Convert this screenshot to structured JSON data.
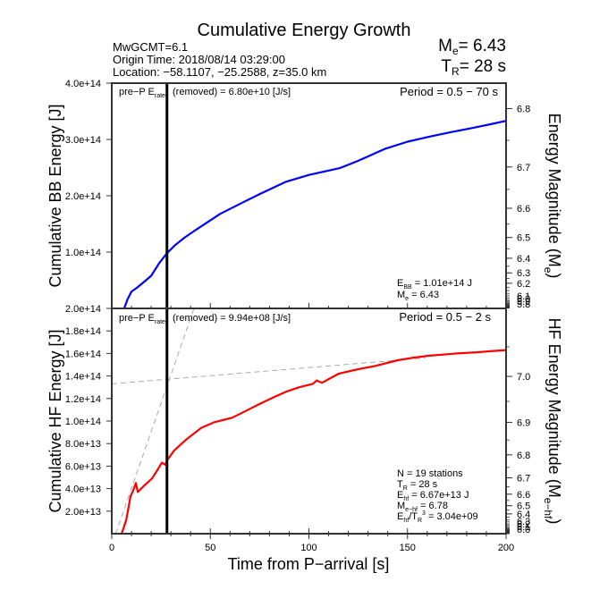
{
  "title": "Cumulative Energy Growth",
  "event": {
    "mw_line": "MwGCMT=6.1",
    "origin_time_line": "Origin Time: 2018/08/14 03:29:00",
    "location_line": "Location: −58.1107, −25.2588, z=35.0 km",
    "me_label": "M",
    "me_sub": "e",
    "me_value": "= 6.43",
    "tr_label": "T",
    "tr_sub": "R",
    "tr_value": "= 28 s"
  },
  "chart_data": [
    {
      "type": "line",
      "panel": "top",
      "title": "Cumulative BB Energy",
      "xlabel": "Time from P-arrival [s]",
      "ylabel": "Cumulative BB Energy [J]",
      "y2label_main": "Energy Magnitude (M",
      "y2label_sub": "e",
      "y2label_end": ")",
      "xlim": [
        0,
        200
      ],
      "ylim": [
        0,
        400000000000000.0
      ],
      "ytick_values": [
        100000000000000.0,
        200000000000000.0,
        300000000000000.0,
        400000000000000.0
      ],
      "ytick_labels": [
        "1.0e+14",
        "2.0e+14",
        "3.0e+14",
        "4.0e+14"
      ],
      "y2_magnitude_offset": 2.9,
      "y2_major_ticks": [
        6.8,
        6.7,
        6.6,
        6.5,
        6.4,
        6.3,
        6.2
      ],
      "y2_major_labels": [
        "6.8",
        "6.7",
        "6.6",
        "6.5",
        "6.4",
        "6.3",
        "6.2"
      ],
      "y2_crowded_labels": [
        "6.1",
        "6.0",
        "5.9",
        "5.8"
      ],
      "series": [
        {
          "name": "BB energy",
          "color": "#0000ff",
          "x": [
            6.3,
            8,
            10,
            12.7,
            16,
            20,
            24,
            28,
            32,
            37,
            42,
            47.6,
            55,
            65.8,
            75,
            88.4,
            100,
            115.6,
            125,
            138.3,
            150,
            161,
            172,
            183.7,
            192,
            200
          ],
          "y": [
            0,
            16000000000000.0,
            30000000000000.0,
            36500000000000.0,
            46000000000000.0,
            58000000000000.0,
            80000000000000.0,
            98000000000000.0,
            112000000000000.0,
            126000000000000.0,
            138000000000000.0,
            151000000000000.0,
            168000000000000.0,
            187000000000000.0,
            203000000000000.0,
            225000000000000.0,
            237000000000000.0,
            249000000000000.0,
            262000000000000.0,
            283000000000000.0,
            296000000000000.0,
            305000000000000.0,
            313000000000000.0,
            321000000000000.0,
            327000000000000.0,
            333000000000000.0
          ]
        }
      ],
      "vline_x": 28,
      "annotations": {
        "pre_p_prefix": "pre−P E",
        "pre_p_sub": "rate",
        "pre_p_rest": "(removed) = 6.80e+10 [J/s]",
        "period": "Period = 0.5 − 70 s",
        "ebb_label": "E",
        "ebb_sub": "BB",
        "ebb_value": " = 1.01e+14 J",
        "me_label": "M",
        "me_sub": "e",
        "me_value": " = 6.43"
      }
    },
    {
      "type": "line",
      "panel": "bottom",
      "title": "Cumulative HF Energy",
      "xlabel": "Time from P−arrival [s]",
      "ylabel": "Cumulative HF Energy [J]",
      "y2label_main": "HF Energy Magnitude (M",
      "y2label_sub": "e−hf",
      "y2label_end": ")",
      "xlim": [
        0,
        200
      ],
      "ylim": [
        0,
        200000000000000.0
      ],
      "xtick_values": [
        0,
        50,
        100,
        150,
        200
      ],
      "xtick_labels": [
        "0",
        "50",
        "100",
        "150",
        "200"
      ],
      "ytick_values": [
        20000000000000.0,
        40000000000000.0,
        60000000000000.0,
        80000000000000.0,
        100000000000000.0,
        120000000000000.0,
        140000000000000.0,
        160000000000000.0,
        180000000000000.0,
        200000000000000.0
      ],
      "ytick_labels": [
        "2.0e+13",
        "4.0e+13",
        "6.0e+13",
        "8.0e+13",
        "1.0e+14",
        "1.2e+14",
        "1.4e+14",
        "1.6e+14",
        "1.8e+14",
        "2.0e+14"
      ],
      "y2_magnitude_offset": 2.43,
      "y2_major_ticks": [
        7.0,
        6.9,
        6.8,
        6.7,
        6.6,
        6.5,
        6.4
      ],
      "y2_major_labels": [
        "7.0",
        "6.9",
        "6.8",
        "6.7",
        "6.6",
        "6.5",
        "6.4"
      ],
      "y2_crowded_labels": [
        "6.3",
        "6.2",
        "6.1",
        "6.0"
      ],
      "series": [
        {
          "name": "HF energy",
          "color": "#ff0000",
          "x": [
            5,
            6,
            7.3,
            8.5,
            9.5,
            11,
            12.2,
            13.2,
            16,
            20.4,
            23,
            25.4,
            27.2,
            28,
            31.7,
            38,
            45.4,
            52,
            61.2,
            68,
            74.8,
            82,
            88.4,
            95,
            102,
            104,
            106.6,
            115,
            125,
            133.8,
            145,
            152,
            161,
            175,
            185,
            192,
            200
          ],
          "y": [
            0,
            5000000000000.0,
            12000000000000.0,
            23000000000000.0,
            33000000000000.0,
            39000000000000.0,
            45000000000000.0,
            37000000000000.0,
            42000000000000.0,
            49000000000000.0,
            56000000000000.0,
            63000000000000.0,
            61000000000000.0,
            65000000000000.0,
            74000000000000.0,
            84000000000000.0,
            94000000000000.0,
            99000000000000.0,
            103000000000000.0,
            109000000000000.0,
            115000000000000.0,
            121000000000000.0,
            126000000000000.0,
            130000000000000.0,
            133000000000000.0,
            136000000000000.0,
            134000000000000.0,
            142000000000000.0,
            146000000000000.0,
            149000000000000.0,
            154000000000000.0,
            156000000000000.0,
            158000000000000.0,
            160000000000000.0,
            161000000000000.0,
            162000000000000.0,
            163000000000000.0
          ]
        }
      ],
      "dashed_fits": [
        {
          "name": "late-fit",
          "color": "#aaaaaa",
          "x": [
            0,
            159
          ],
          "y": [
            133000000000000.0,
            156000000000000.0
          ]
        },
        {
          "name": "early-fit",
          "color": "#aaaaaa",
          "x": [
            2,
            41.7
          ],
          "y": [
            0,
            200000000000000.0
          ]
        }
      ],
      "vline_x": 28,
      "annotations": {
        "pre_p_prefix": "pre−P E",
        "pre_p_sub": "rate",
        "pre_p_rest": "(removed) = 9.94e+08 [J/s]",
        "period": "Period = 0.5 − 2 s",
        "stations": "N = 19 stations",
        "tr_label": "T",
        "tr_sub": "R",
        "tr_value": " = 28  s",
        "ehf_label": "E",
        "ehf_sub": "hf",
        "ehf_value": " = 6.67e+13 J",
        "mehf_label": "M",
        "mehf_sub": "e−hf",
        "mehf_value": " = 6.78",
        "ratio_label": "E",
        "ratio_sub": "hf",
        "ratio_mid": "/T",
        "ratio_sub2": "R",
        "ratio_sup": "3",
        "ratio_value": " =  3.04e+09"
      }
    }
  ]
}
